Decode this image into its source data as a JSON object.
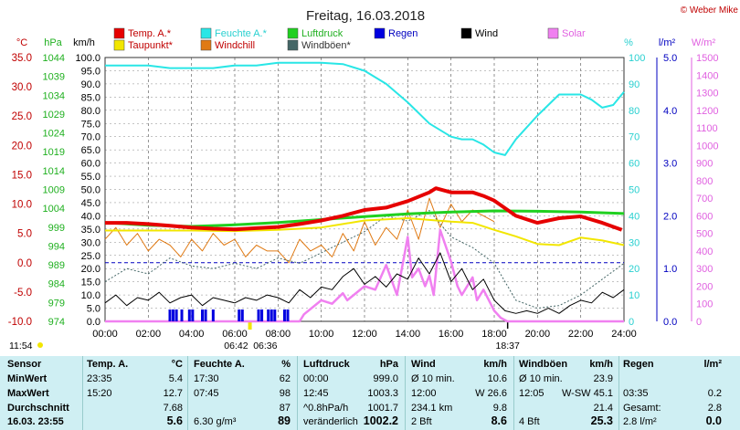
{
  "title": "Freitag, 16.03.2018",
  "copyright": "© Weber Mike",
  "legend": [
    {
      "label": "Temp. A.*",
      "color": "#e60000"
    },
    {
      "label": "Taupunkt*",
      "color": "#f2e600"
    },
    {
      "label": "Feuchte A.*",
      "color": "#29e6e6"
    },
    {
      "label": "Windchill",
      "color": "#e07a14"
    },
    {
      "label": "Luftdruck",
      "color": "#20d020"
    },
    {
      "label": "Windböen*",
      "color": "#446666"
    },
    {
      "label": "Regen",
      "color": "#0000e0"
    },
    {
      "label": "Wind",
      "color": "#000000"
    },
    {
      "label": "Solar",
      "color": "#f080f0"
    }
  ],
  "axis_units": {
    "temp": "°C",
    "pressure": "hPa",
    "wind": "km/h",
    "humidity": "%",
    "rain": "l/m²",
    "solar": "W/m²"
  },
  "time_marks": {
    "sunrise": "06:42",
    "sunrise_alt": "06:36",
    "sunset": "18:37",
    "moon": "11:54"
  },
  "chart_data": {
    "type": "line",
    "x_ticks": [
      "00:00",
      "02:00",
      "04:00",
      "06:00",
      "08:00",
      "10:00",
      "12:00",
      "14:00",
      "16:00",
      "18:00",
      "20:00",
      "22:00",
      "24:00"
    ],
    "x_range_hours": [
      0,
      24
    ],
    "temp_axis": {
      "label": "°C",
      "ticks": [
        "35.0",
        "30.0",
        "25.0",
        "20.0",
        "15.0",
        "10.0",
        "5.0",
        "0.0",
        "-5.0",
        "-10.0"
      ],
      "range": [
        -10,
        35
      ]
    },
    "pressure_axis": {
      "label": "hPa",
      "ticks": [
        "1044",
        "1039",
        "1034",
        "1029",
        "1024",
        "1019",
        "1014",
        "1009",
        "1004",
        "999",
        "994",
        "989",
        "984",
        "979",
        "974"
      ],
      "range": [
        974,
        1044
      ]
    },
    "wind_axis": {
      "label": "km/h",
      "ticks": [
        "100.0",
        "95.0",
        "90.0",
        "85.0",
        "80.0",
        "75.0",
        "70.0",
        "65.0",
        "60.0",
        "55.0",
        "50.0",
        "45.0",
        "40.0",
        "35.0",
        "30.0",
        "25.0",
        "20.0",
        "15.0",
        "10.0",
        "5.0",
        "0.0"
      ],
      "range": [
        0,
        100
      ]
    },
    "humidity_axis": {
      "label": "%",
      "ticks": [
        "100",
        "90",
        "80",
        "70",
        "60",
        "50",
        "40",
        "30",
        "20",
        "10",
        "0"
      ],
      "range": [
        0,
        100
      ]
    },
    "rain_axis": {
      "label": "l/m²",
      "ticks": [
        "5.0",
        "4.0",
        "3.0",
        "2.0",
        "1.0",
        "0.0"
      ],
      "range": [
        0,
        5
      ]
    },
    "solar_axis": {
      "label": "W/m²",
      "ticks": [
        "1500",
        "1400",
        "1300",
        "1200",
        "1100",
        "1000",
        "900",
        "800",
        "700",
        "600",
        "500",
        "400",
        "300",
        "200",
        "100",
        "0"
      ],
      "range": [
        0,
        1500
      ]
    },
    "series": [
      {
        "name": "Temp. A.*",
        "axis": "temp",
        "color": "#e60000",
        "width": 4,
        "x": [
          0,
          1,
          2,
          3,
          4,
          5,
          6,
          7,
          8,
          9,
          10,
          11,
          12,
          13,
          14,
          15,
          15.3,
          16,
          17,
          17.5,
          18,
          19,
          20,
          21,
          22,
          23,
          23.9
        ],
        "y": [
          6.8,
          6.8,
          6.6,
          6.3,
          6.0,
          5.8,
          5.7,
          5.9,
          6.1,
          6.6,
          7.2,
          8.0,
          9.0,
          9.4,
          10.5,
          12.0,
          12.7,
          12.0,
          12.0,
          11.4,
          10.6,
          8.0,
          6.8,
          7.6,
          7.9,
          6.8,
          5.6
        ]
      },
      {
        "name": "Taupunkt*",
        "axis": "temp",
        "color": "#f2e600",
        "width": 2,
        "x": [
          0,
          2,
          4,
          6,
          8,
          10,
          11,
          12,
          13,
          14,
          15,
          16,
          17,
          18,
          19,
          20,
          21,
          22,
          23,
          24
        ],
        "y": [
          5.5,
          5.5,
          5.5,
          5.4,
          5.6,
          6.0,
          6.6,
          7.2,
          7.4,
          7.6,
          7.3,
          7.0,
          6.8,
          5.6,
          4.5,
          3.2,
          3.0,
          4.3,
          3.8,
          3.0
        ]
      },
      {
        "name": "Feuchte A.*",
        "axis": "humidity",
        "color": "#29e6e6",
        "width": 2,
        "x": [
          0,
          1,
          2,
          3,
          4,
          5,
          6,
          7,
          8,
          9,
          10,
          11,
          12,
          13,
          14,
          15,
          16,
          16.5,
          17,
          17.5,
          18,
          18.5,
          19,
          20,
          21,
          22,
          22.5,
          23,
          23.5,
          24
        ],
        "y": [
          97,
          97,
          97,
          96,
          96,
          96,
          97,
          97,
          98,
          98,
          98,
          97.5,
          95,
          90,
          83,
          75,
          70,
          69,
          69,
          67,
          64,
          63,
          69,
          78,
          86,
          86,
          84,
          81,
          82,
          87
        ]
      },
      {
        "name": "Luftdruck",
        "axis": "pressure",
        "color": "#20d020",
        "width": 3,
        "x": [
          0,
          2,
          4,
          6,
          8,
          10,
          12,
          14,
          16,
          18,
          20,
          22,
          24
        ],
        "y": [
          1000.2,
          999.5,
          999.2,
          999.6,
          1000.2,
          1001.0,
          1001.8,
          1002.5,
          1003.0,
          1003.3,
          1003.2,
          1003.0,
          1002.6
        ]
      },
      {
        "name": "Windchill",
        "axis": "temp",
        "color": "#e07a14",
        "width": 1,
        "x": [
          0,
          0.5,
          1,
          1.5,
          2,
          2.5,
          3,
          3.5,
          4,
          4.5,
          5,
          5.5,
          6,
          6.5,
          7,
          7.5,
          8,
          8.5,
          9,
          9.5,
          10,
          10.5,
          11,
          11.5,
          12,
          12.5,
          13,
          13.5,
          14,
          14.5,
          15,
          15.5,
          16,
          16.5,
          17,
          17.5,
          18
        ],
        "y": [
          4,
          6,
          3,
          5,
          2,
          4,
          3,
          1,
          4,
          2,
          5,
          3,
          4,
          1,
          3,
          2,
          2,
          0,
          4,
          2,
          3,
          1,
          5,
          2,
          7,
          3,
          6,
          4,
          9,
          4,
          11,
          6,
          10,
          7,
          9,
          8,
          7
        ]
      },
      {
        "name": "Windböen*",
        "axis": "wind",
        "color": "#446666",
        "width": 1,
        "dash": "2,2",
        "x": [
          0,
          1,
          2,
          3,
          4,
          5,
          6,
          7,
          8,
          9,
          10,
          11,
          12,
          13,
          14,
          15,
          16,
          17,
          18,
          19,
          20,
          21,
          22,
          23,
          24
        ],
        "y": [
          15,
          20,
          18,
          24,
          21,
          20,
          22,
          20,
          24,
          22,
          26,
          30,
          34,
          40,
          38,
          42,
          32,
          28,
          22,
          8,
          5,
          6,
          10,
          16,
          22
        ]
      },
      {
        "name": "Wind",
        "axis": "wind",
        "color": "#000000",
        "width": 1,
        "x": [
          0,
          0.5,
          1,
          1.5,
          2,
          2.5,
          3,
          3.5,
          4,
          4.5,
          5,
          5.5,
          6,
          6.5,
          7,
          7.5,
          8,
          8.5,
          9,
          9.5,
          10,
          10.5,
          11,
          11.5,
          12,
          12.5,
          13,
          13.5,
          14,
          14.5,
          15,
          15.5,
          16,
          16.5,
          17,
          17.5,
          18,
          18.5,
          19,
          19.5,
          20,
          20.5,
          21,
          21.5,
          22,
          22.5,
          23,
          23.5,
          24
        ],
        "y": [
          7,
          10,
          6,
          9,
          8,
          11,
          7,
          9,
          10,
          6,
          9,
          8,
          7,
          9,
          8,
          10,
          9,
          7,
          12,
          9,
          13,
          12,
          17,
          20,
          14,
          17,
          13,
          18,
          16,
          24,
          18,
          26,
          15,
          20,
          12,
          16,
          8,
          4,
          3,
          4,
          3,
          5,
          3,
          6,
          8,
          7,
          11,
          9,
          12
        ]
      },
      {
        "name": "Solar",
        "axis": "solar",
        "color": "#f080f0",
        "width": 2.5,
        "x": [
          0,
          9.0,
          9.2,
          10.0,
          10.5,
          11.0,
          11.2,
          11.5,
          12.0,
          12.5,
          13.0,
          13.5,
          14.0,
          14.2,
          14.5,
          14.8,
          15.0,
          15.2,
          15.5,
          16.0,
          16.3,
          16.5,
          17.0,
          17.2,
          17.5,
          18.0,
          18.3,
          18.6,
          24
        ],
        "y": [
          0,
          0,
          40,
          120,
          100,
          160,
          120,
          150,
          200,
          180,
          320,
          150,
          480,
          250,
          300,
          200,
          260,
          150,
          520,
          340,
          200,
          150,
          250,
          120,
          180,
          60,
          20,
          0,
          0
        ]
      }
    ],
    "rain_events_hours": [
      3.0,
      3.15,
      3.3,
      3.55,
      3.9,
      4.05,
      4.5,
      4.65,
      5.0,
      6.2,
      6.35,
      7.1,
      7.25,
      7.55,
      7.7,
      7.85,
      8.3,
      8.45
    ]
  },
  "table": {
    "headers": [
      {
        "name": "Sensor",
        "unit": ""
      },
      {
        "name": "Temp. A.",
        "unit": "°C"
      },
      {
        "name": "Feuchte A.",
        "unit": "%"
      },
      {
        "name": "Luftdruck",
        "unit": "hPa"
      },
      {
        "name": "Wind",
        "unit": "km/h"
      },
      {
        "name": "Windböen",
        "unit": "km/h"
      },
      {
        "name": "Regen",
        "unit": "l/m²"
      }
    ],
    "row_labels": [
      "MinWert",
      "MaxWert",
      "Durchschnitt",
      "16.03. 23:55"
    ],
    "temp": [
      [
        "23:35",
        "5.4"
      ],
      [
        "15:20",
        "12.7"
      ],
      [
        "",
        "7.68"
      ],
      [
        "",
        "5.6"
      ]
    ],
    "humidity": [
      [
        "17:30",
        "62"
      ],
      [
        "07:45",
        "98"
      ],
      [
        "",
        "87"
      ],
      [
        "6.30 g/m³",
        "89"
      ]
    ],
    "pressure": [
      [
        "00:00",
        "999.0"
      ],
      [
        "12:45",
        "1003.3"
      ],
      [
        "^0.8hPa/h",
        "1001.7"
      ],
      [
        "veränderlich",
        "1002.2"
      ]
    ],
    "wind": [
      [
        "Ø 10 min.",
        "10.6"
      ],
      [
        "12:00",
        "W 26.6"
      ],
      [
        "234.1 km",
        "9.8"
      ],
      [
        "2 Bft",
        "8.6"
      ]
    ],
    "gusts": [
      [
        "Ø 10 min.",
        "23.9"
      ],
      [
        "12:05",
        "W-SW 45.1"
      ],
      [
        "",
        "21.4"
      ],
      [
        "4 Bft",
        "25.3"
      ]
    ],
    "rain": [
      [
        "",
        ""
      ],
      [
        "03:35",
        "0.2"
      ],
      [
        "Gesamt:",
        "2.8"
      ],
      [
        "2.8 l/m²",
        "0.0"
      ]
    ]
  }
}
